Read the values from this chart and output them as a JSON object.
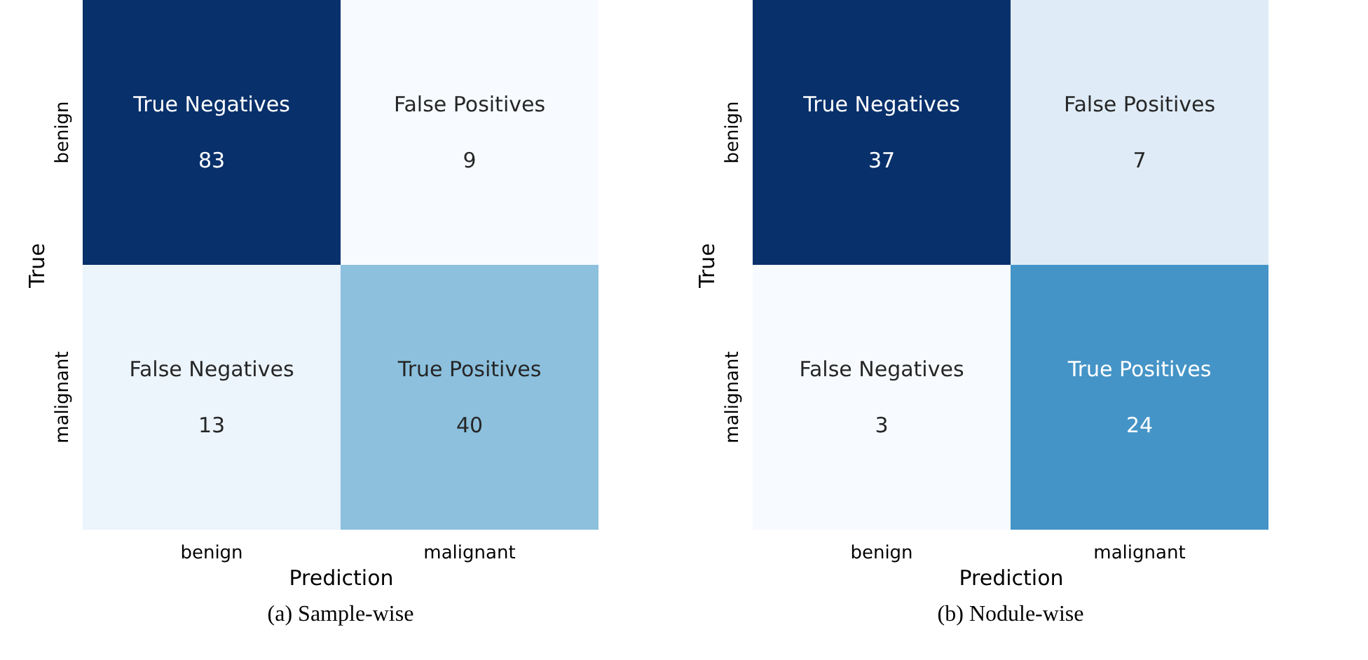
{
  "chart_data": [
    {
      "type": "heatmap",
      "title": "(a) Sample-wise",
      "xlabel": "Prediction",
      "ylabel": "True",
      "categories": [
        "benign",
        "malignant"
      ],
      "y_categories": [
        "benign",
        "malignant"
      ],
      "cells": [
        [
          83,
          9
        ],
        [
          13,
          40
        ]
      ],
      "data_labels": true,
      "annotations": [
        "True Negatives",
        "False Positives",
        "False Negatives",
        "True Positives"
      ]
    },
    {
      "type": "heatmap",
      "title": "(b) Nodule-wise",
      "xlabel": "Prediction",
      "ylabel": "True",
      "categories": [
        "benign",
        "malignant"
      ],
      "y_categories": [
        "benign",
        "malignant"
      ],
      "cells": [
        [
          37,
          7
        ],
        [
          3,
          24
        ]
      ],
      "data_labels": true,
      "annotations": [
        "True Negatives",
        "False Positives",
        "False Negatives",
        "True Positives"
      ]
    }
  ]
}
